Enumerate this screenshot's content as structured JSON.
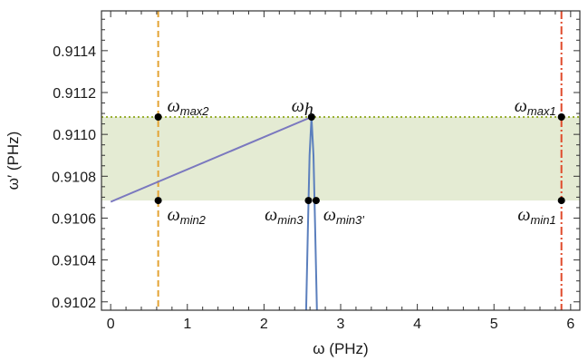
{
  "chart_data": {
    "type": "line",
    "xlabel": "ω (PHz)",
    "ylabel": "ω′ (PHz)",
    "xlim": [
      -0.12,
      6.12
    ],
    "ylim": [
      0.91016,
      0.91159
    ],
    "x_ticks": [
      0,
      1,
      2,
      3,
      4,
      5,
      6
    ],
    "x_tick_labels": [
      "0",
      "1",
      "2",
      "3",
      "4",
      "5",
      "6"
    ],
    "y_ticks": [
      0.9102,
      0.9104,
      0.9106,
      0.9108,
      0.911,
      0.9112,
      0.9114
    ],
    "y_tick_labels": [
      "0.9102",
      "0.9104",
      "0.9106",
      "0.9108",
      "0.9110",
      "0.9112",
      "0.9114"
    ],
    "band": {
      "y_from": 0.910684,
      "y_to": 0.911083,
      "color": "#e4ebd3"
    },
    "hlines": [
      {
        "y": 0.911083,
        "color": "#9ab035",
        "style": "dotted"
      }
    ],
    "vlines": [
      {
        "x": 0.62,
        "color": "#e3a334",
        "style": "dashed"
      },
      {
        "x": 5.88,
        "color": "#e04a2b",
        "style": "dashdot"
      }
    ],
    "series": [
      {
        "color": "#7a78bf",
        "points": [
          [
            0,
            0.910678
          ],
          [
            2.62,
            0.911083
          ]
        ]
      },
      {
        "color": "#5b7fbd",
        "points": [
          [
            2.55,
            0.91016
          ],
          [
            2.575,
            0.91058
          ],
          [
            2.595,
            0.9109
          ],
          [
            2.62,
            0.911083
          ],
          [
            2.645,
            0.9109
          ],
          [
            2.665,
            0.91058
          ],
          [
            2.69,
            0.91016
          ]
        ]
      }
    ],
    "points": [
      {
        "x": 0.62,
        "y": 0.911083,
        "label": "ω",
        "sub": "max2",
        "anchor": "start",
        "dx": 10,
        "dy": -6
      },
      {
        "x": 2.62,
        "y": 0.911083,
        "label": "ω",
        "sub": "h",
        "anchor": "end",
        "dx": 2,
        "dy": -6
      },
      {
        "x": 5.88,
        "y": 0.911083,
        "label": "ω",
        "sub": "max1",
        "anchor": "end",
        "dx": -6,
        "dy": -6
      },
      {
        "x": 0.62,
        "y": 0.910684,
        "label": "ω",
        "sub": "min2",
        "anchor": "start",
        "dx": 10,
        "dy": 22
      },
      {
        "x": 2.58,
        "y": 0.910684,
        "label": "ω",
        "sub": "min3",
        "anchor": "end",
        "dx": -6,
        "dy": 22
      },
      {
        "x": 2.68,
        "y": 0.910684,
        "label": "ω",
        "sub": "min3'",
        "anchor": "start",
        "dx": 8,
        "dy": 22
      },
      {
        "x": 5.88,
        "y": 0.910684,
        "label": "ω",
        "sub": "min1",
        "anchor": "end",
        "dx": -6,
        "dy": 22
      }
    ]
  }
}
